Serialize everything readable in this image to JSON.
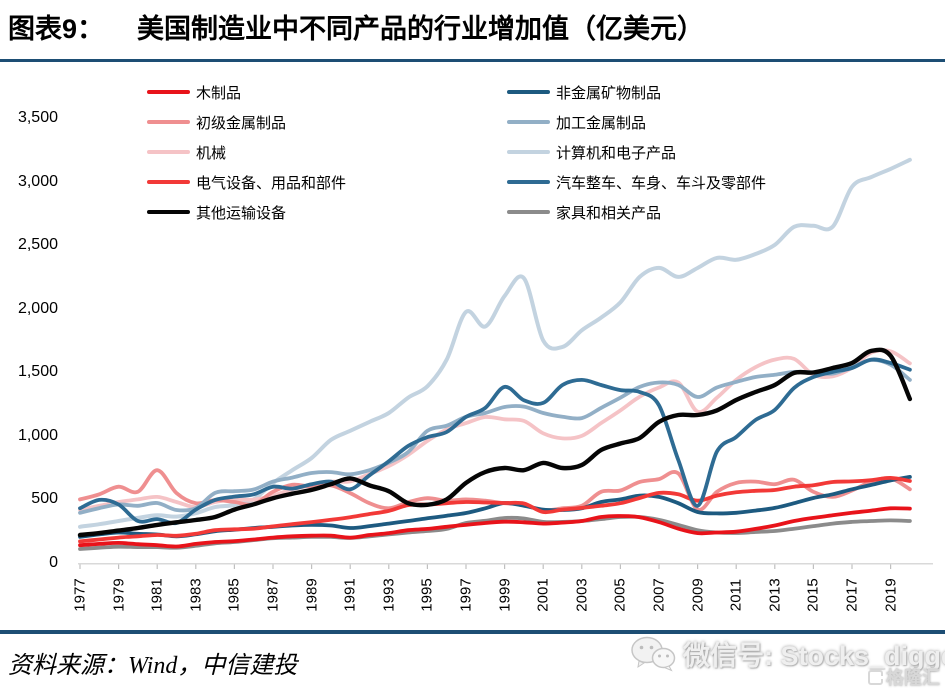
{
  "header": {
    "figure_label": "图表9：",
    "title": "美国制造业中不同产品的行业增加值（亿美元）"
  },
  "footer": {
    "source": "资料来源：Wind，中信建投"
  },
  "watermark": {
    "wechat_label": "微信号: Stocks_digger",
    "logo_text": "格隆汇"
  },
  "colors": {
    "divider": "#1d4e74",
    "axis": "#d9d9d9",
    "tick": "#c0c0c0"
  },
  "chart_data": {
    "type": "line",
    "title": "美国制造业中不同产品的行业增加值（亿美元）",
    "unit": "亿美元",
    "xlabel": "",
    "ylabel": "",
    "grid": false,
    "legend_position": "top",
    "ylim": [
      0,
      3500
    ],
    "y_ticks": {
      "values": [
        0,
        500,
        1000,
        1500,
        2000,
        2500,
        3000,
        3500
      ],
      "labels": [
        "0",
        "500",
        "1,000",
        "1,500",
        "2,000",
        "2,500",
        "3,000",
        "3,500"
      ]
    },
    "x": [
      1977,
      1978,
      1979,
      1980,
      1981,
      1982,
      1983,
      1984,
      1985,
      1986,
      1987,
      1988,
      1989,
      1990,
      1991,
      1992,
      1993,
      1994,
      1995,
      1996,
      1997,
      1998,
      1999,
      2000,
      2001,
      2002,
      2003,
      2004,
      2005,
      2006,
      2007,
      2008,
      2009,
      2010,
      2011,
      2012,
      2013,
      2014,
      2015,
      2016,
      2017,
      2018,
      2019,
      2020
    ],
    "x_tick_years": [
      1977,
      1979,
      1981,
      1983,
      1985,
      1987,
      1989,
      1991,
      1993,
      1995,
      1997,
      1999,
      2001,
      2003,
      2005,
      2007,
      2009,
      2011,
      2013,
      2015,
      2017,
      2019
    ],
    "legend_columns": [
      [
        0,
        1,
        2,
        3,
        4
      ],
      [
        5,
        6,
        7,
        8,
        9
      ]
    ],
    "draw_order": [
      7,
      2,
      1,
      6,
      9,
      0,
      5,
      3,
      8,
      4
    ],
    "series": [
      {
        "id": "wood-products",
        "name": "木制品",
        "color": "#e8131a",
        "width": 3.8,
        "values": [
          140,
          150,
          158,
          148,
          140,
          130,
          150,
          165,
          172,
          185,
          200,
          210,
          215,
          215,
          200,
          220,
          235,
          258,
          268,
          285,
          300,
          315,
          325,
          320,
          310,
          318,
          330,
          362,
          370,
          360,
          322,
          270,
          235,
          240,
          246,
          268,
          295,
          330,
          355,
          375,
          395,
          412,
          430,
          428
        ]
      },
      {
        "id": "primary-metals",
        "name": "初级金属制品",
        "color": "#ef8f90",
        "width": 3.8,
        "values": [
          500,
          540,
          600,
          560,
          730,
          550,
          470,
          495,
          480,
          462,
          560,
          615,
          600,
          610,
          550,
          470,
          430,
          478,
          510,
          490,
          500,
          490,
          470,
          458,
          415,
          430,
          450,
          560,
          570,
          638,
          660,
          705,
          420,
          560,
          630,
          640,
          620,
          655,
          560,
          520,
          570,
          640,
          665,
          580
        ]
      },
      {
        "id": "machinery",
        "name": "机械",
        "color": "#f5c3c6",
        "width": 3.8,
        "values": [
          420,
          450,
          480,
          500,
          520,
          480,
          440,
          480,
          500,
          498,
          530,
          580,
          610,
          640,
          642,
          700,
          762,
          850,
          960,
          1050,
          1100,
          1148,
          1130,
          1118,
          1020,
          980,
          1000,
          1100,
          1200,
          1308,
          1380,
          1420,
          1190,
          1300,
          1440,
          1540,
          1600,
          1605,
          1480,
          1468,
          1535,
          1655,
          1665,
          1570
        ]
      },
      {
        "id": "electrical-equipment",
        "name": "电气设备、用品和部件",
        "color": "#f23937",
        "width": 3.8,
        "values": [
          170,
          185,
          200,
          210,
          220,
          214,
          230,
          258,
          265,
          270,
          288,
          305,
          322,
          340,
          360,
          385,
          410,
          455,
          460,
          470,
          480,
          476,
          472,
          468,
          401,
          420,
          433,
          450,
          470,
          511,
          551,
          540,
          490,
          530,
          556,
          568,
          574,
          600,
          612,
          637,
          642,
          652,
          669,
          645
        ]
      },
      {
        "id": "other-transport-equipment",
        "name": "其他运输设备",
        "color": "#050505",
        "width": 4.4,
        "values": [
          220,
          235,
          255,
          275,
          300,
          320,
          338,
          362,
          420,
          462,
          510,
          545,
          575,
          620,
          665,
          610,
          565,
          470,
          458,
          500,
          630,
          716,
          747,
          730,
          787,
          747,
          771,
          889,
          940,
          983,
          1110,
          1164,
          1164,
          1200,
          1282,
          1345,
          1400,
          1495,
          1498,
          1534,
          1573,
          1668,
          1630,
          1290
        ]
      },
      {
        "id": "nonmetallic-minerals",
        "name": "非金属矿物制品",
        "color": "#1d5a80",
        "width": 3.8,
        "values": [
          205,
          225,
          240,
          230,
          224,
          210,
          226,
          250,
          262,
          275,
          285,
          295,
          300,
          295,
          275,
          290,
          310,
          330,
          352,
          372,
          393,
          430,
          472,
          450,
          420,
          417,
          430,
          480,
          500,
          530,
          520,
          470,
          401,
          390,
          395,
          412,
          433,
          470,
          511,
          540,
          580,
          614,
          650,
          677
        ]
      },
      {
        "id": "fabricated-metals",
        "name": "加工金属制品",
        "color": "#92afc6",
        "width": 3.8,
        "values": [
          395,
          432,
          460,
          450,
          472,
          417,
          432,
          551,
          565,
          578,
          640,
          672,
          708,
          715,
          698,
          730,
          790,
          872,
          1040,
          1080,
          1150,
          1180,
          1227,
          1230,
          1180,
          1150,
          1140,
          1220,
          1300,
          1385,
          1420,
          1400,
          1306,
          1380,
          1424,
          1463,
          1480,
          1503,
          1500,
          1490,
          1540,
          1597,
          1560,
          1440
        ]
      },
      {
        "id": "computer-electronics",
        "name": "计算机和电子产品",
        "color": "#c3d3e0",
        "width": 4.0,
        "values": [
          285,
          305,
          330,
          355,
          375,
          365,
          392,
          440,
          456,
          500,
          629,
          730,
          826,
          968,
          1040,
          1110,
          1180,
          1300,
          1390,
          1600,
          1975,
          1860,
          2100,
          2240,
          1750,
          1700,
          1830,
          1930,
          2050,
          2250,
          2321,
          2250,
          2320,
          2400,
          2385,
          2430,
          2502,
          2644,
          2652,
          2645,
          2959,
          3035,
          3100,
          3171
        ]
      },
      {
        "id": "motor-vehicles",
        "name": "汽车整车、车身、车斗及零部件",
        "color": "#2e6b93",
        "width": 3.8,
        "values": [
          430,
          496,
          460,
          330,
          345,
          315,
          420,
          496,
          522,
          540,
          600,
          585,
          620,
          640,
          580,
          690,
          800,
          920,
          990,
          1030,
          1149,
          1220,
          1385,
          1280,
          1259,
          1400,
          1440,
          1400,
          1360,
          1345,
          1240,
          810,
          450,
          876,
          991,
          1125,
          1204,
          1377,
          1463,
          1503,
          1534,
          1600,
          1573,
          1520
        ]
      },
      {
        "id": "furniture",
        "name": "家具和相关产品",
        "color": "#8b8b8b",
        "width": 3.8,
        "values": [
          110,
          120,
          128,
          125,
          125,
          120,
          135,
          155,
          165,
          180,
          195,
          200,
          205,
          205,
          197,
          210,
          225,
          240,
          252,
          268,
          315,
          332,
          354,
          350,
          323,
          323,
          330,
          345,
          362,
          362,
          340,
          300,
          258,
          240,
          236,
          244,
          252,
          270,
          290,
          310,
          323,
          330,
          335,
          330
        ]
      }
    ]
  }
}
